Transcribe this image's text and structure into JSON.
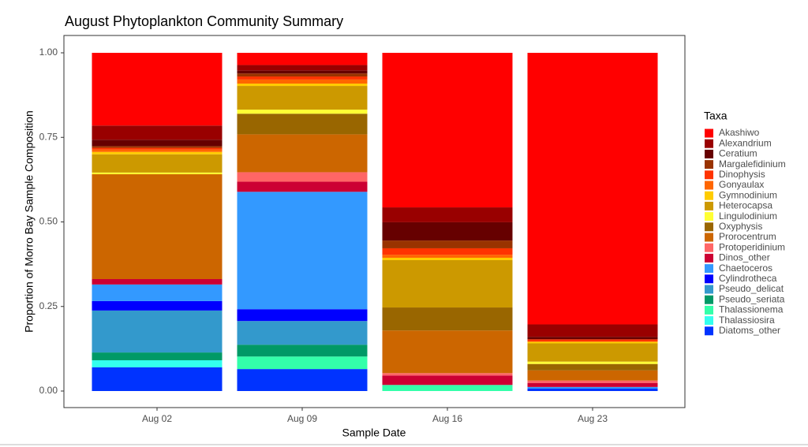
{
  "chart_data": {
    "type": "stacked_bar",
    "title": "August Phytoplankton Community Summary",
    "x_label": "Sample Date",
    "y_label": "Proportion of Morro Bay Sample Composition",
    "legend_title": "Taxa",
    "categories": [
      "Aug 02",
      "Aug 09",
      "Aug 16",
      "Aug 23"
    ],
    "ylim": [
      0,
      1
    ],
    "yticks": [
      {
        "value": 0,
        "label": "0.00"
      },
      {
        "value": 0.25,
        "label": "0.25"
      },
      {
        "value": 0.5,
        "label": "0.50"
      },
      {
        "value": 0.75,
        "label": "0.75"
      },
      {
        "value": 1,
        "label": "1.00"
      }
    ],
    "series": [
      {
        "name": "Akashiwo",
        "color": "#ff0000",
        "values": [
          0.215,
          0.036,
          0.457,
          0.803
        ]
      },
      {
        "name": "Alexandrium",
        "color": "#990000",
        "values": [
          0.042,
          0.016,
          0.044,
          0.037
        ]
      },
      {
        "name": "Ceratium",
        "color": "#660000",
        "values": [
          0.019,
          0.009,
          0.054,
          0.007
        ]
      },
      {
        "name": "Margalefidinium",
        "color": "#993300",
        "values": [
          0.005,
          0.009,
          0.023,
          0
        ]
      },
      {
        "name": "Dinophysis",
        "color": "#ff3300",
        "values": [
          0.005,
          0.009,
          0.019,
          0.007
        ]
      },
      {
        "name": "Gonyaulax",
        "color": "#ff6600",
        "values": [
          0.007,
          0.012,
          0.009,
          0
        ]
      },
      {
        "name": "Gymnodinium",
        "color": "#ffcc00",
        "values": [
          0.007,
          0.007,
          0.007,
          0.005
        ]
      },
      {
        "name": "Heterocapsa",
        "color": "#cc9900",
        "values": [
          0.054,
          0.07,
          0.14,
          0.054
        ]
      },
      {
        "name": "Lingulodinium",
        "color": "#ffff33",
        "values": [
          0.005,
          0.012,
          0,
          0.007
        ]
      },
      {
        "name": "Oxyphysis",
        "color": "#996600",
        "values": [
          0,
          0.061,
          0.068,
          0.019
        ]
      },
      {
        "name": "Prorocentrum",
        "color": "#cc6600",
        "values": [
          0.31,
          0.112,
          0.126,
          0.03
        ]
      },
      {
        "name": "Protoperidinium",
        "color": "#ff6666",
        "values": [
          0,
          0.028,
          0.007,
          0.007
        ]
      },
      {
        "name": "Dinos_other",
        "color": "#cc0033",
        "values": [
          0.016,
          0.03,
          0.028,
          0.012
        ]
      },
      {
        "name": "Chaetoceros",
        "color": "#3399ff",
        "values": [
          0.049,
          0.347,
          0,
          0.005
        ]
      },
      {
        "name": "Cylindrotheca",
        "color": "#0000ff",
        "values": [
          0.028,
          0.035,
          0,
          0
        ]
      },
      {
        "name": "Pseudo_delicat",
        "color": "#3399cc",
        "values": [
          0.124,
          0.07,
          0,
          0
        ]
      },
      {
        "name": "Pseudo_seriata",
        "color": "#009966",
        "values": [
          0.023,
          0.035,
          0,
          0
        ]
      },
      {
        "name": "Thalassionema",
        "color": "#33ffaa",
        "values": [
          0,
          0.037,
          0.018,
          0
        ]
      },
      {
        "name": "Thalassiosira",
        "color": "#33ffee",
        "values": [
          0.021,
          0,
          0,
          0
        ]
      },
      {
        "name": "Diatoms_other",
        "color": "#0033ff",
        "values": [
          0.07,
          0.065,
          0,
          0.007
        ]
      }
    ]
  }
}
